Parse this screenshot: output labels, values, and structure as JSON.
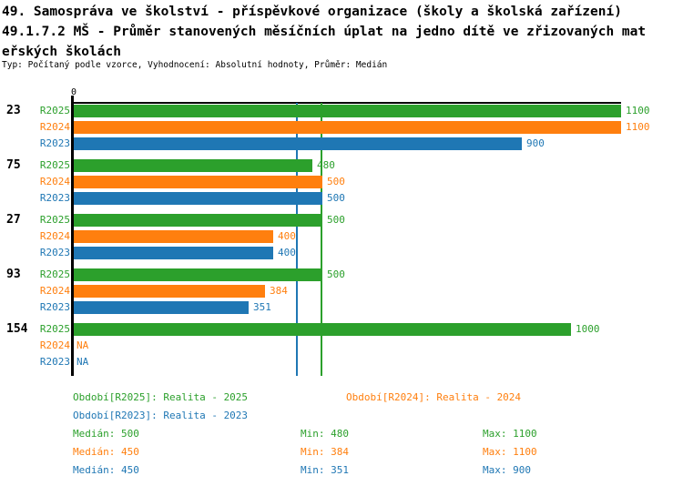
{
  "title": {
    "line1": "49. Samospráva ve školství - příspěvkové organizace (školy a školská zařízení)",
    "line2": "49.1.7.2 MŠ - Průměr stanovených měsíčních úplat na jedno dítě ve zřizovaných mat",
    "line3": "eřských školách",
    "subtitle": "Typ: Počítaný podle vzorce, Vyhodnocení: Absolutní hodnoty, Průměr: Medián"
  },
  "chart_data": {
    "type": "bar",
    "orientation": "horizontal",
    "title": "49.1.7.2 MŠ - Průměr stanovených měsíčních úplat na jedno dítě ve zřizovaných mateřských školách",
    "x_axis": {
      "origin_tick_label": "0",
      "xlim": [
        0,
        1100
      ],
      "grid": false
    },
    "series_labels": [
      "R2025",
      "R2024",
      "R2023"
    ],
    "colors": {
      "R2025": "#2ca02c",
      "R2024": "#ff7f0e",
      "R2023": "#1f77b4"
    },
    "na_label": "NA",
    "groups": [
      {
        "label": "23",
        "values": {
          "R2025": 1100,
          "R2024": 1100,
          "R2023": 900
        }
      },
      {
        "label": "75",
        "values": {
          "R2025": 480,
          "R2024": 500,
          "R2023": 500
        }
      },
      {
        "label": "27",
        "values": {
          "R2025": 500,
          "R2024": 400,
          "R2023": 400
        }
      },
      {
        "label": "93",
        "values": {
          "R2025": 500,
          "R2024": 384,
          "R2023": 351
        }
      },
      {
        "label": "154",
        "values": {
          "R2025": 1000,
          "R2024": null,
          "R2023": null
        }
      }
    ],
    "reference_lines": [
      {
        "value": 450,
        "series": "R2023"
      },
      {
        "value": 500,
        "series": "R2025"
      }
    ]
  },
  "legend": {
    "items": [
      {
        "label": "Období[R2025]: Realita - 2025",
        "series": "R2025"
      },
      {
        "label": "Období[R2024]: Realita - 2024",
        "series": "R2024"
      },
      {
        "label": "Období[R2023]: Realita - 2023",
        "series": "R2023"
      }
    ]
  },
  "stats": {
    "rows": [
      {
        "series": "R2025",
        "median": "Medián: 500",
        "min": "Min: 480",
        "max": "Max: 1100"
      },
      {
        "series": "R2024",
        "median": "Medián: 450",
        "min": "Min: 384",
        "max": "Max: 1100"
      },
      {
        "series": "R2023",
        "median": "Medián: 450",
        "min": "Min: 351",
        "max": "Max: 900"
      }
    ]
  }
}
